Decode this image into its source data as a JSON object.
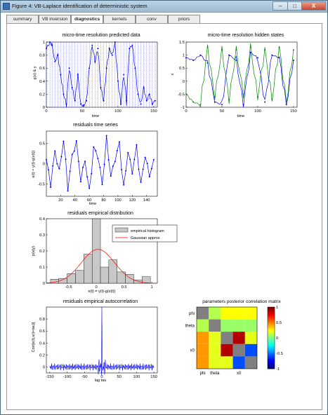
{
  "window": {
    "title": "Figure 4: VB-Laplace identification of deterministic system",
    "minimize_label": "–",
    "maximize_label": "□",
    "close_label": "X"
  },
  "tabs": [
    {
      "label": "summary"
    },
    {
      "label": "VB inversion"
    },
    {
      "label": "diagnostics",
      "active": true
    },
    {
      "label": "kernels"
    },
    {
      "label": "conv"
    },
    {
      "label": "priors"
    }
  ],
  "colors": {
    "blue": "#0000ee",
    "green": "#008800",
    "red": "#ff0000",
    "bar_fill": "#c8c8c8"
  },
  "panels": {
    "predicted": {
      "title": "micro-time resolution predicted data",
      "ylabel": "g(x) & y",
      "xlabel": "time",
      "xticks": [
        "0",
        "50",
        "100",
        "150"
      ],
      "yticks": [
        "0",
        "0.2",
        "0.4",
        "0.6",
        "0.8",
        "1"
      ]
    },
    "hidden": {
      "title": "micro-time resolution hidden states",
      "ylabel": "x",
      "xlabel": "time",
      "xticks": [
        "0",
        "50",
        "100",
        "150"
      ],
      "yticks": [
        "-1",
        "-0.5",
        "0",
        "0.5",
        "1",
        "1.5"
      ]
    },
    "residuals_ts": {
      "title": "residuals time series",
      "ylabel": "e(t) = y(t)-g(x(t))",
      "xlabel": "time",
      "xticks": [
        "20",
        "40",
        "60",
        "80",
        "100",
        "120",
        "140"
      ],
      "yticks": [
        "-0.5",
        "0",
        "0.5"
      ]
    },
    "residuals_dist": {
      "title": "residuals empirical distribution",
      "ylabel": "p(e|y)",
      "xlabel": "e(t) = y(t)-g(x(t))",
      "xticks": [
        "-0.5",
        "0",
        "0.5",
        "1"
      ],
      "yticks": [
        "0",
        "0.1",
        "0.2",
        "0.3",
        "0.4"
      ],
      "legend": [
        "empirical histogram",
        "Gaussian approx"
      ]
    },
    "autocorr": {
      "title": "residuals empirical autocorrelation",
      "ylabel": "Corr[e(t),e(t+tau)]",
      "xlabel": "lag tau",
      "xticks": [
        "-150",
        "-100",
        "-50",
        "0",
        "50",
        "100",
        "150"
      ],
      "yticks": [
        "0",
        "0.2",
        "0.4",
        "0.6",
        "0.8"
      ]
    },
    "corrmat": {
      "title": "parameters posterior correlation matrix",
      "row_labels": [
        "phi",
        "theta",
        "x0"
      ],
      "col_labels": [
        "phi",
        "theta",
        "x0"
      ],
      "colorbar_ticks": [
        "-1",
        "-0.5",
        "0",
        "0.5",
        "1"
      ]
    }
  },
  "chart_data": [
    {
      "type": "line",
      "title": "micro-time resolution predicted data",
      "xlabel": "time",
      "ylabel": "g(x) & y",
      "xlim": [
        0,
        155
      ],
      "ylim": [
        0,
        1
      ],
      "series": [
        {
          "x": [
            0,
            5,
            8,
            12,
            16,
            20,
            24,
            28,
            32,
            36,
            40,
            44,
            48,
            52,
            56,
            60,
            64,
            68,
            72,
            76,
            80,
            84,
            88,
            92,
            96,
            100,
            104,
            108,
            112,
            116,
            120,
            124,
            128,
            132,
            136,
            140,
            144,
            148,
            152
          ],
          "y": [
            0.9,
            1,
            0.95,
            0.7,
            0.8,
            0.5,
            0.2,
            0.05,
            0.6,
            0.3,
            0.1,
            0.5,
            0.05,
            0.02,
            0.1,
            0.6,
            0.95,
            0.7,
            0.9,
            0.3,
            0.1,
            0.6,
            0.9,
            0.8,
            1,
            0.4,
            0.05,
            0.5,
            0.1,
            0.9,
            0.95,
            0.6,
            0.2,
            0.05,
            0.3,
            0.1,
            0.2,
            0.05,
            0.1
          ]
        }
      ]
    },
    {
      "type": "line",
      "title": "micro-time resolution hidden states",
      "xlabel": "time",
      "ylabel": "x",
      "xlim": [
        0,
        155
      ],
      "ylim": [
        -1,
        1.5
      ],
      "series": [
        {
          "x": [
            0,
            10,
            20,
            30,
            40,
            50,
            60,
            70,
            80,
            90,
            100,
            110,
            120,
            130,
            140,
            150
          ],
          "y": [
            0.9,
            0.8,
            1,
            0.7,
            -0.8,
            -0.9,
            1,
            0.8,
            -0.9,
            1.1,
            0.9,
            -0.8,
            1,
            0.9,
            -0.9,
            0.8
          ]
        },
        {
          "x": [
            0,
            10,
            20,
            30,
            40,
            50,
            60,
            70,
            80,
            90,
            100,
            110,
            120,
            130,
            140,
            150
          ],
          "y": [
            -0.5,
            -0.8,
            -0.9,
            1.3,
            -0.6,
            1.2,
            -0.7,
            1.2,
            -0.5,
            1.3,
            -0.6,
            1.2,
            -0.7,
            1.3,
            -0.8,
            1.2
          ]
        }
      ]
    },
    {
      "type": "line",
      "title": "residuals time series",
      "xlabel": "time",
      "ylabel": "e(t) = y(t)-g(x(t))",
      "xlim": [
        0,
        155
      ],
      "ylim": [
        -0.8,
        0.8
      ],
      "series": [
        {
          "x": [
            0,
            6,
            12,
            18,
            24,
            30,
            36,
            42,
            48,
            54,
            60,
            66,
            72,
            78,
            84,
            90,
            96,
            102,
            108,
            114,
            120,
            126,
            132,
            138,
            144,
            150
          ],
          "y": [
            0.1,
            -0.5,
            0.3,
            -0.2,
            0.6,
            -0.6,
            0.2,
            0.5,
            -0.4,
            0.1,
            -0.7,
            0.4,
            0.2,
            -0.5,
            0.6,
            -0.3,
            0.1,
            0.5,
            -0.6,
            0.3,
            -0.2,
            0.4,
            -0.5,
            0.2,
            -0.3,
            0.1
          ]
        }
      ]
    },
    {
      "type": "bar",
      "title": "residuals empirical distribution",
      "xlabel": "e(t) = y(t)-g(x(t))",
      "ylabel": "p(e|y)",
      "xlim": [
        -0.9,
        1.1
      ],
      "ylim": [
        0,
        0.4
      ],
      "categories": [
        "-0.75",
        "-0.6",
        "-0.45",
        "-0.3",
        "-0.15",
        "0",
        "0.15",
        "0.3",
        "0.45",
        "0.6",
        "0.75",
        "0.9"
      ],
      "values": [
        0.025,
        0.03,
        0.06,
        0.08,
        0.18,
        0.4,
        0.1,
        0.145,
        0.07,
        0.055,
        0.02,
        0.04
      ],
      "series": [
        {
          "name": "Gaussian approx",
          "mean": 0.03,
          "peak": 0.21,
          "sd": 0.3
        }
      ]
    },
    {
      "type": "line",
      "title": "residuals empirical autocorrelation",
      "xlabel": "lag tau",
      "ylabel": "Corr[e(t),e(t+tau)]",
      "xlim": [
        -160,
        160
      ],
      "ylim": [
        -0.1,
        1
      ],
      "series": [
        {
          "x": [
            -150,
            -100,
            -50,
            -10,
            -5,
            0,
            5,
            10,
            50,
            100,
            150
          ],
          "y": [
            0,
            0.02,
            -0.03,
            0.05,
            0.2,
            1,
            0.2,
            0.05,
            -0.03,
            0.02,
            0
          ]
        }
      ]
    },
    {
      "type": "heatmap",
      "title": "parameters posterior correlation matrix",
      "categories": [
        "phi",
        "theta",
        "x0"
      ],
      "clim": [
        -1,
        1
      ],
      "values": [
        [
          1,
          0.1,
          0.25,
          0.25,
          0.25
        ],
        [
          0.1,
          1,
          0.05,
          0.05,
          0.05
        ],
        [
          0.45,
          0.2,
          1,
          0.9,
          0.2
        ],
        [
          0.45,
          0.2,
          0.9,
          1,
          -0.6
        ],
        [
          0.45,
          0.2,
          0.2,
          -0.6,
          1
        ]
      ]
    }
  ]
}
